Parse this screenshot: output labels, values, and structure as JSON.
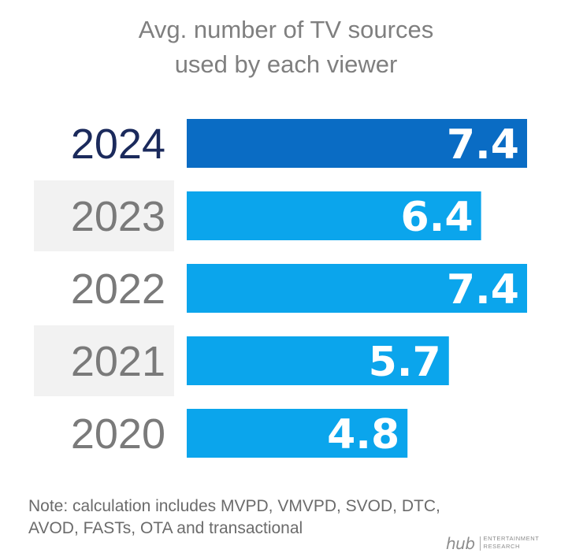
{
  "chart_data": {
    "type": "bar",
    "title_lines": [
      "Avg. number of TV sources",
      "used by each viewer"
    ],
    "categories": [
      "2024",
      "2023",
      "2022",
      "2021",
      "2020"
    ],
    "values": [
      7.4,
      6.4,
      7.4,
      5.7,
      4.8
    ],
    "value_labels": [
      "7.4",
      "6.4",
      "7.4",
      "5.7",
      "4.8"
    ],
    "highlight": "2024",
    "shaded_rows": [
      "2023",
      "2021"
    ],
    "orientation": "horizontal",
    "xlim": [
      0,
      7.4
    ],
    "grid": false,
    "colors": {
      "highlight_bar": "#0a6cc4",
      "bar": "#0ba5ec",
      "highlight_label": "#1b2a5c",
      "label": "#7a7a7a",
      "row_shade": "#f2f2f2",
      "value_text": "#ffffff"
    }
  },
  "note": {
    "line1": "Note: calculation includes MVPD, VMVPD, SVOD, DTC,",
    "line2": "AVOD, FASTs, OTA and transactional"
  },
  "logo": {
    "word": "hub",
    "sub1": "ENTERTAINMENT",
    "sub2": "RESEARCH"
  }
}
